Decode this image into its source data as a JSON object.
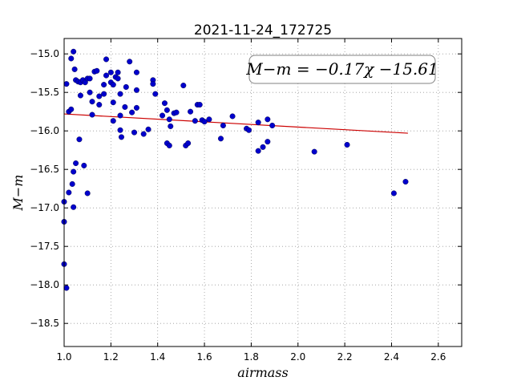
{
  "chart_data": {
    "type": "scatter",
    "title": "2021-11-24_172725",
    "xlabel": "airmass",
    "ylabel": "M−m",
    "xlim": [
      1.0,
      2.7
    ],
    "ylim": [
      -18.8,
      -14.8
    ],
    "y_inverted": true,
    "grid": true,
    "x_ticks": [
      "1.0",
      "1.2",
      "1.4",
      "1.6",
      "1.8",
      "2.0",
      "2.2",
      "2.4",
      "2.6"
    ],
    "x_tick_values": [
      1.0,
      1.2,
      1.4,
      1.6,
      1.8,
      2.0,
      2.2,
      2.4,
      2.6
    ],
    "y_ticks": [
      "−15.0",
      "−15.5",
      "−16.0",
      "−16.5",
      "−17.0",
      "−17.5",
      "−18.0",
      "−18.5"
    ],
    "y_tick_values": [
      -15.0,
      -15.5,
      -16.0,
      -16.5,
      -17.0,
      -17.5,
      -18.0,
      -18.5
    ],
    "annotation": "M−m = −0.17χ −15.61",
    "annotation_position": "top-right",
    "points_color": "#0000cc",
    "fit_color": "#cc0000",
    "fit": {
      "slope": -0.17,
      "intercept": -15.61,
      "x_range": [
        1.0,
        2.47
      ]
    },
    "points": [
      [
        1.0,
        -16.92
      ],
      [
        1.0,
        -17.18
      ],
      [
        1.0,
        -17.73
      ],
      [
        1.01,
        -18.04
      ],
      [
        1.01,
        -15.39
      ],
      [
        1.02,
        -16.8
      ],
      [
        1.02,
        -15.75
      ],
      [
        1.03,
        -15.72
      ],
      [
        1.03,
        -15.06
      ],
      [
        1.035,
        -16.69
      ],
      [
        1.04,
        -14.97
      ],
      [
        1.04,
        -16.53
      ],
      [
        1.04,
        -16.99
      ],
      [
        1.045,
        -15.2
      ],
      [
        1.05,
        -16.42
      ],
      [
        1.05,
        -15.34
      ],
      [
        1.06,
        -15.36
      ],
      [
        1.065,
        -16.11
      ],
      [
        1.07,
        -15.54
      ],
      [
        1.07,
        -15.37
      ],
      [
        1.08,
        -15.34
      ],
      [
        1.085,
        -16.45
      ],
      [
        1.09,
        -15.37
      ],
      [
        1.1,
        -15.32
      ],
      [
        1.1,
        -16.81
      ],
      [
        1.11,
        -15.32
      ],
      [
        1.11,
        -15.5
      ],
      [
        1.12,
        -15.62
      ],
      [
        1.12,
        -15.79
      ],
      [
        1.13,
        -15.23
      ],
      [
        1.14,
        -15.22
      ],
      [
        1.15,
        -15.55
      ],
      [
        1.15,
        -15.66
      ],
      [
        1.17,
        -15.4
      ],
      [
        1.17,
        -15.52
      ],
      [
        1.18,
        -15.28
      ],
      [
        1.18,
        -15.07
      ],
      [
        1.2,
        -15.24
      ],
      [
        1.2,
        -15.37
      ],
      [
        1.21,
        -15.4
      ],
      [
        1.21,
        -15.63
      ],
      [
        1.21,
        -15.87
      ],
      [
        1.22,
        -15.3
      ],
      [
        1.23,
        -15.32
      ],
      [
        1.23,
        -15.24
      ],
      [
        1.24,
        -15.52
      ],
      [
        1.24,
        -15.8
      ],
      [
        1.24,
        -15.99
      ],
      [
        1.245,
        -16.08
      ],
      [
        1.26,
        -15.69
      ],
      [
        1.265,
        -15.43
      ],
      [
        1.28,
        -15.1
      ],
      [
        1.29,
        -15.76
      ],
      [
        1.3,
        -16.02
      ],
      [
        1.31,
        -15.24
      ],
      [
        1.31,
        -15.47
      ],
      [
        1.31,
        -15.7
      ],
      [
        1.34,
        -16.04
      ],
      [
        1.36,
        -15.98
      ],
      [
        1.38,
        -15.34
      ],
      [
        1.38,
        -15.39
      ],
      [
        1.39,
        -15.52
      ],
      [
        1.42,
        -15.8
      ],
      [
        1.43,
        -15.64
      ],
      [
        1.44,
        -16.16
      ],
      [
        1.44,
        -15.73
      ],
      [
        1.45,
        -15.85
      ],
      [
        1.45,
        -16.19
      ],
      [
        1.455,
        -15.94
      ],
      [
        1.47,
        -15.77
      ],
      [
        1.48,
        -15.76
      ],
      [
        1.51,
        -15.41
      ],
      [
        1.52,
        -16.19
      ],
      [
        1.53,
        -16.16
      ],
      [
        1.54,
        -15.75
      ],
      [
        1.56,
        -15.87
      ],
      [
        1.57,
        -15.66
      ],
      [
        1.58,
        -15.66
      ],
      [
        1.59,
        -15.86
      ],
      [
        1.6,
        -15.88
      ],
      [
        1.62,
        -15.85
      ],
      [
        1.67,
        -16.1
      ],
      [
        1.68,
        -15.93
      ],
      [
        1.72,
        -15.81
      ],
      [
        1.78,
        -15.97
      ],
      [
        1.79,
        -15.99
      ],
      [
        1.83,
        -16.26
      ],
      [
        1.83,
        -15.89
      ],
      [
        1.85,
        -16.21
      ],
      [
        1.87,
        -15.85
      ],
      [
        1.87,
        -16.14
      ],
      [
        1.89,
        -15.93
      ],
      [
        2.07,
        -16.27
      ],
      [
        2.21,
        -16.18
      ],
      [
        2.41,
        -16.81
      ],
      [
        2.46,
        -16.66
      ]
    ]
  }
}
